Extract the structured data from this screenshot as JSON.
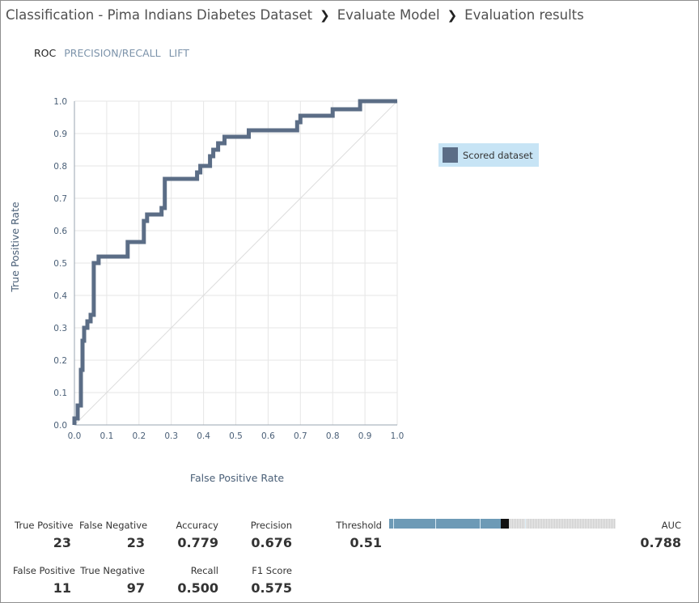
{
  "breadcrumb": {
    "items": [
      "Classification - Pima Indians Diabetes Dataset",
      "Evaluate Model",
      "Evaluation results"
    ]
  },
  "tabs": [
    {
      "label": "ROC",
      "active": true
    },
    {
      "label": "PRECISION/RECALL",
      "active": false
    },
    {
      "label": "LIFT",
      "active": false
    }
  ],
  "chart_data": {
    "type": "line",
    "xlabel": "False Positive Rate",
    "ylabel": "True Positive Rate",
    "xlim": [
      0,
      1
    ],
    "ylim": [
      0,
      1
    ],
    "x_ticks": [
      "0.0",
      "0.1",
      "0.2",
      "0.3",
      "0.4",
      "0.5",
      "0.6",
      "0.7",
      "0.8",
      "0.9",
      "1.0"
    ],
    "y_ticks": [
      "0.0",
      "0.1",
      "0.2",
      "0.3",
      "0.4",
      "0.5",
      "0.6",
      "0.7",
      "0.8",
      "0.9",
      "1.0"
    ],
    "grid": true,
    "legend_position": "right",
    "colors": {
      "series": "#5b6d86",
      "diagonal": "#dcdcdc",
      "grid": "#e6e6e6",
      "legend_bg": "#c7e4f5"
    },
    "series": [
      {
        "name": "Scored dataset",
        "x": [
          0.0,
          0.0,
          0.01,
          0.01,
          0.02,
          0.02,
          0.025,
          0.025,
          0.03,
          0.03,
          0.04,
          0.04,
          0.05,
          0.05,
          0.06,
          0.06,
          0.075,
          0.075,
          0.1,
          0.1,
          0.165,
          0.165,
          0.215,
          0.215,
          0.225,
          0.225,
          0.27,
          0.27,
          0.28,
          0.28,
          0.38,
          0.38,
          0.39,
          0.39,
          0.42,
          0.42,
          0.43,
          0.43,
          0.445,
          0.445,
          0.465,
          0.465,
          0.54,
          0.54,
          0.69,
          0.69,
          0.7,
          0.7,
          0.75,
          0.75,
          0.8,
          0.8,
          0.815,
          0.815,
          0.885,
          0.885,
          1.0
        ],
        "y": [
          0.0,
          0.02,
          0.02,
          0.06,
          0.06,
          0.17,
          0.17,
          0.26,
          0.26,
          0.3,
          0.3,
          0.32,
          0.32,
          0.34,
          0.34,
          0.5,
          0.5,
          0.52,
          0.52,
          0.52,
          0.52,
          0.565,
          0.565,
          0.63,
          0.63,
          0.65,
          0.65,
          0.67,
          0.67,
          0.76,
          0.76,
          0.78,
          0.78,
          0.8,
          0.8,
          0.83,
          0.83,
          0.85,
          0.85,
          0.87,
          0.87,
          0.89,
          0.89,
          0.91,
          0.91,
          0.935,
          0.935,
          0.955,
          0.955,
          0.955,
          0.955,
          0.975,
          0.975,
          0.975,
          0.975,
          1.0,
          1.0
        ]
      }
    ]
  },
  "metrics": {
    "true_positive": {
      "label": "True Positive",
      "value": "23"
    },
    "false_negative": {
      "label": "False Negative",
      "value": "23"
    },
    "accuracy": {
      "label": "Accuracy",
      "value": "0.779"
    },
    "precision": {
      "label": "Precision",
      "value": "0.676"
    },
    "false_positive": {
      "label": "False Positive",
      "value": "11"
    },
    "true_negative": {
      "label": "True Negative",
      "value": "97"
    },
    "recall": {
      "label": "Recall",
      "value": "0.500"
    },
    "f1_score": {
      "label": "F1 Score",
      "value": "0.575"
    },
    "threshold": {
      "label": "Threshold",
      "value": "0.51",
      "fraction": 0.51
    },
    "auc": {
      "label": "AUC",
      "value": "0.788"
    }
  }
}
